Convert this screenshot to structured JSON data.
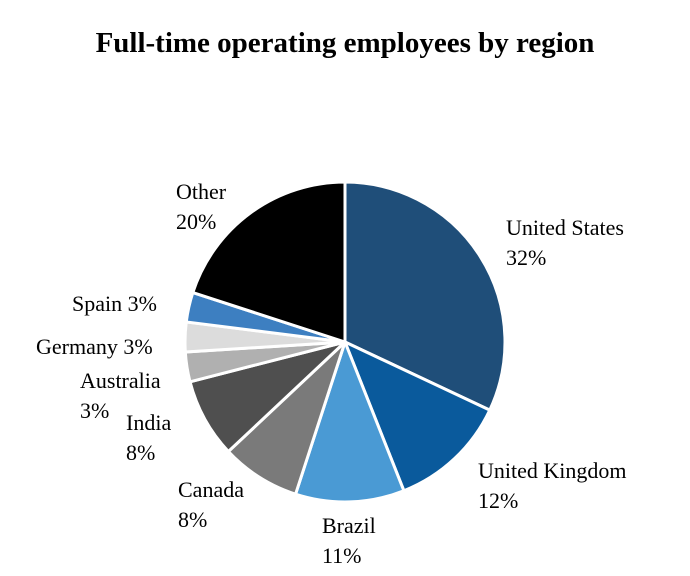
{
  "chart_data": {
    "type": "pie",
    "title": "Full-time operating employees by region",
    "slices": [
      {
        "label": "United States",
        "value": 32,
        "value_label": "32%",
        "color": "#1f4e79",
        "label_lines": [
          "United States",
          "32%"
        ]
      },
      {
        "label": "United Kingdom",
        "value": 12,
        "value_label": "12%",
        "color": "#0a5a9c",
        "label_lines": [
          "United Kingdom",
          "12%"
        ]
      },
      {
        "label": "Brazil",
        "value": 11,
        "value_label": "11%",
        "color": "#4a9ad4",
        "label_lines": [
          "Brazil",
          "11%"
        ]
      },
      {
        "label": "Canada",
        "value": 8,
        "value_label": "8%",
        "color": "#7a7a7a",
        "label_lines": [
          "Canada",
          "8%"
        ]
      },
      {
        "label": "India",
        "value": 8,
        "value_label": "8%",
        "color": "#4f4f4f",
        "label_lines": [
          "India",
          "8%"
        ]
      },
      {
        "label": "Australia",
        "value": 3,
        "value_label": "3%",
        "color": "#b0b0b0",
        "label_lines": [
          "Australia",
          "3%"
        ]
      },
      {
        "label": "Germany",
        "value": 3,
        "value_label": "3%",
        "color": "#dcdcdc",
        "label_lines": [
          "Germany 3%"
        ]
      },
      {
        "label": "Spain",
        "value": 3,
        "value_label": "3%",
        "color": "#3d7fc1",
        "label_lines": [
          "Spain 3%"
        ]
      },
      {
        "label": "Other",
        "value": 20,
        "value_label": "20%",
        "color": "#000000",
        "label_lines": [
          "Other",
          "20%"
        ]
      }
    ]
  }
}
